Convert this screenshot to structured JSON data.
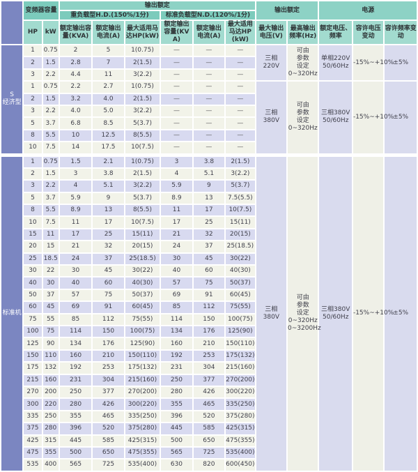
{
  "colors": {
    "header_teal_top": "#8dd2c5",
    "header_teal_mid": "#7ccbbc",
    "header_teal_sub": "#a2dbcf",
    "section_blue": "#7b86c1",
    "row_cream": "#f2f3e9",
    "row_lavender": "#d8daf0"
  },
  "header": {
    "capacity": "变频器容量",
    "output_rating": "输出额定",
    "output_rating_right": "输出额定",
    "power": "电源",
    "heavy_duty": "重负载型H.D.(150%/1分)",
    "normal_duty": "标准负载型N.D.(120%/1分)",
    "hp": "HP",
    "kw": "kW",
    "rated_kva_hd": "额定输出容量(KVA)",
    "rated_current_hd": "额定输出电流(A)",
    "max_motor_hd": "最大适用马达HP(kW)",
    "rated_kva_nd": "额定输出容量(KVA)",
    "rated_current_nd": "额定输出电流(A)",
    "max_motor_nd": "最大适用马达HP(kW)",
    "max_voltage": "最大输出电压(V)",
    "max_freq": "最高输出频率(Hz)",
    "rated_vf": "额定电压、频率",
    "voltage_fluct": "容许电压变动",
    "freq_fluct": "容许频率变动"
  },
  "sections": [
    {
      "label": "S\n经济型",
      "groups": [
        {
          "rows": [
            [
              "1",
              "0.75",
              "2",
              "5",
              "1(0.75)",
              "—",
              "—",
              "—"
            ],
            [
              "2",
              "1.5",
              "2.8",
              "7",
              "2(1.5)",
              "—",
              "—",
              "—"
            ],
            [
              "3",
              "2.2",
              "4.4",
              "11",
              "3(2.2)",
              "—",
              "—",
              "—"
            ]
          ],
          "merged": [
            "三相\n220V",
            "可由\n参数\n设定\n0~320Hz",
            "单相220V\n50/60Hz",
            "-15%~+10%",
            "±5%"
          ]
        },
        {
          "rows": [
            [
              "1",
              "0.75",
              "2.2",
              "2.7",
              "1(0.75)",
              "—",
              "—",
              "—"
            ],
            [
              "2",
              "1.5",
              "3.2",
              "4.0",
              "2(1.5)",
              "—",
              "—",
              "—"
            ],
            [
              "3",
              "2.2",
              "4.0",
              "5.0",
              "3(2.2)",
              "—",
              "—",
              "—"
            ],
            [
              "5",
              "3.7",
              "6.8",
              "8.5",
              "5(3.7)",
              "—",
              "—",
              "—"
            ],
            [
              "8",
              "5.5",
              "10",
              "12.5",
              "8(5.5)",
              "—",
              "—",
              "—"
            ],
            [
              "10",
              "7.5",
              "14",
              "17.5",
              "10(7.5)",
              "—",
              "—",
              "—"
            ]
          ],
          "merged": [
            "三相\n380V",
            "可由\n参数\n设定\n0~320Hz",
            "三相380V\n50/60Hz",
            "-15%~+10%",
            "±5%"
          ]
        }
      ]
    },
    {
      "label": "标准机",
      "groups": [
        {
          "rows": [
            [
              "1",
              "0.75",
              "1.5",
              "2.1",
              "1(0.75)",
              "3",
              "3.8",
              "2(1.5)"
            ],
            [
              "2",
              "1.5",
              "3",
              "3.8",
              "2(1.5)",
              "4",
              "5.1",
              "3(2.2)"
            ],
            [
              "3",
              "2.2",
              "4",
              "5.1",
              "3(2.2)",
              "5.9",
              "9",
              "5(3.7)"
            ],
            [
              "5",
              "3.7",
              "5.9",
              "9",
              "5(3.7)",
              "8.9",
              "13",
              "7.5(5.5)"
            ],
            [
              "8",
              "5.5",
              "8.9",
              "13",
              "8(5.5)",
              "11",
              "17",
              "10(7.5)"
            ],
            [
              "10",
              "7.5",
              "11",
              "17",
              "10(7.5)",
              "17",
              "25",
              "15(11)"
            ],
            [
              "15",
              "11",
              "17",
              "25",
              "15(11)",
              "21",
              "32",
              "20(15)"
            ],
            [
              "20",
              "15",
              "21",
              "32",
              "20(15)",
              "24",
              "37",
              "25(18.5)"
            ],
            [
              "25",
              "18.5",
              "24",
              "37",
              "25(18.5)",
              "30",
              "45",
              "30(22)"
            ],
            [
              "30",
              "22",
              "30",
              "45",
              "30(22)",
              "40",
              "60",
              "40(30)"
            ],
            [
              "40",
              "30",
              "40",
              "60",
              "40(30)",
              "57",
              "75",
              "50(37)"
            ],
            [
              "50",
              "37",
              "57",
              "75",
              "50(37)",
              "69",
              "91",
              "60(45)"
            ],
            [
              "60",
              "45",
              "69",
              "91",
              "60(45)",
              "85",
              "112",
              "75(55)"
            ],
            [
              "75",
              "55",
              "85",
              "112",
              "75(55)",
              "114",
              "150",
              "100(75)"
            ],
            [
              "100",
              "75",
              "114",
              "150",
              "100(75)",
              "134",
              "176",
              "125(90)"
            ],
            [
              "125",
              "90",
              "134",
              "176",
              "125(90)",
              "160",
              "210",
              "150(110)"
            ],
            [
              "150",
              "110",
              "160",
              "210",
              "150(110)",
              "192",
              "253",
              "175(132)"
            ],
            [
              "175",
              "132",
              "192",
              "253",
              "175(132)",
              "231",
              "304",
              "215(160)"
            ],
            [
              "215",
              "160",
              "231",
              "304",
              "215(160)",
              "250",
              "377",
              "270(200)"
            ],
            [
              "270",
              "200",
              "250",
              "377",
              "270(200)",
              "280",
              "426",
              "300(220)"
            ],
            [
              "300",
              "220",
              "280",
              "426",
              "300(220)",
              "355",
              "465",
              "335(250)"
            ],
            [
              "335",
              "250",
              "355",
              "465",
              "335(250)",
              "396",
              "520",
              "375(280)"
            ],
            [
              "375",
              "280",
              "396",
              "520",
              "375(280)",
              "445",
              "585",
              "425(315)"
            ],
            [
              "425",
              "315",
              "445",
              "585",
              "425(315)",
              "500",
              "650",
              "475(355)"
            ],
            [
              "475",
              "355",
              "500",
              "650",
              "475(355)",
              "565",
              "725",
              "535(400)"
            ],
            [
              "535",
              "400",
              "565",
              "725",
              "535(400)",
              "630",
              "820",
              "600(450)"
            ]
          ],
          "merged": [
            "三相\n380V",
            "可由\n参数\n设定\n0~320Hz\n0~3200Hz",
            "三相380V\n50/60Hz",
            "-15%~+10%",
            "±5%"
          ]
        }
      ]
    }
  ]
}
